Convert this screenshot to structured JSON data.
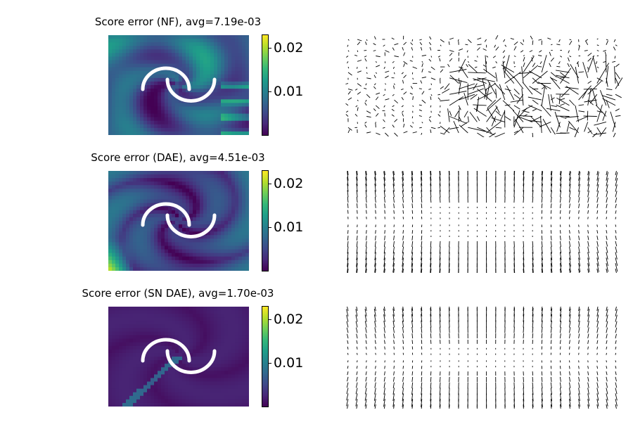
{
  "chart_data": [
    {
      "type": "heatmap",
      "title": "Score error (NF), avg=7.19e-03",
      "colormap": "viridis",
      "clim": [
        0,
        0.022
      ],
      "colorbar_ticks": [
        "0.01",
        "0.02"
      ],
      "colorbar_tick_values": [
        0.01,
        0.02
      ],
      "avg_error": 0.00719,
      "field_pattern": "nf",
      "overlay": "two-moons"
    },
    {
      "type": "heatmap",
      "title": "Score error (DAE), avg=4.51e-03",
      "colormap": "viridis",
      "clim": [
        0,
        0.022
      ],
      "colorbar_ticks": [
        "0.01",
        "0.02"
      ],
      "colorbar_tick_values": [
        0.01,
        0.02
      ],
      "avg_error": 0.00451,
      "field_pattern": "dae",
      "overlay": "two-moons"
    },
    {
      "type": "heatmap",
      "title": "Score error (SN DAE), avg=1.70e-03",
      "colormap": "viridis",
      "clim": [
        0,
        0.022
      ],
      "colorbar_ticks": [
        "0.01",
        "0.02"
      ],
      "colorbar_tick_values": [
        0.01,
        0.02
      ],
      "avg_error": 0.0017,
      "field_pattern": "sndae",
      "overlay": "two-moons"
    }
  ],
  "colors": {
    "viridis_low": "#440154",
    "viridis_high": "#fde725",
    "moons": "#ffffff",
    "arrows": "#000000"
  }
}
